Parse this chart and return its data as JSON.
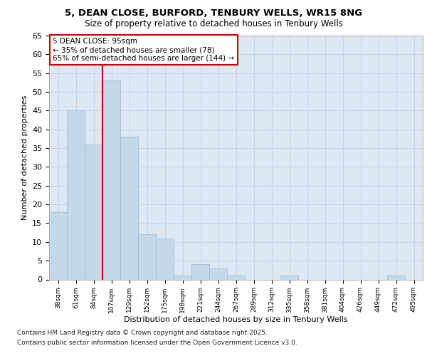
{
  "title1": "5, DEAN CLOSE, BURFORD, TENBURY WELLS, WR15 8NG",
  "title2": "Size of property relative to detached houses in Tenbury Wells",
  "xlabel": "Distribution of detached houses by size in Tenbury Wells",
  "ylabel": "Number of detached properties",
  "categories": [
    "38sqm",
    "61sqm",
    "84sqm",
    "107sqm",
    "129sqm",
    "152sqm",
    "175sqm",
    "198sqm",
    "221sqm",
    "244sqm",
    "267sqm",
    "289sqm",
    "312sqm",
    "335sqm",
    "358sqm",
    "381sqm",
    "404sqm",
    "426sqm",
    "449sqm",
    "472sqm",
    "495sqm"
  ],
  "values": [
    18,
    45,
    36,
    53,
    38,
    12,
    11,
    1,
    4,
    3,
    1,
    0,
    0,
    1,
    0,
    0,
    0,
    0,
    0,
    1,
    0
  ],
  "bar_color": "#c5d8ea",
  "bar_edgecolor": "#9ab8d0",
  "grid_color": "#c8d4e4",
  "background_color": "#dce8f4",
  "vline_color": "#cc0000",
  "annotation_title": "5 DEAN CLOSE: 95sqm",
  "annotation_line1": "← 35% of detached houses are smaller (78)",
  "annotation_line2": "65% of semi-detached houses are larger (144) →",
  "annotation_box_color": "#cc0000",
  "ylim": [
    0,
    65
  ],
  "yticks": [
    0,
    5,
    10,
    15,
    20,
    25,
    30,
    35,
    40,
    45,
    50,
    55,
    60,
    65
  ],
  "footer1": "Contains HM Land Registry data © Crown copyright and database right 2025.",
  "footer2": "Contains public sector information licensed under the Open Government Licence v3.0.",
  "fig_width": 6.0,
  "fig_height": 5.0,
  "dpi": 100
}
